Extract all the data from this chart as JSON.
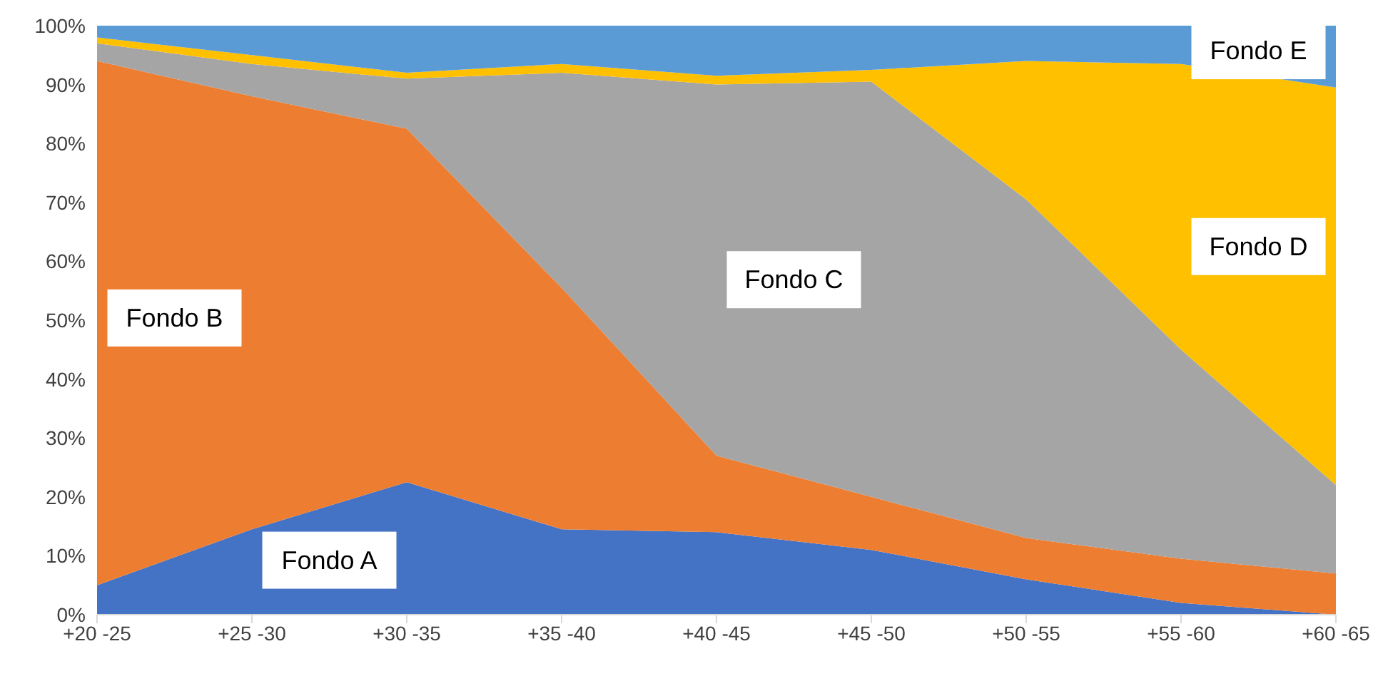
{
  "chart_data": {
    "type": "area",
    "stacked": true,
    "categories": [
      "+20 -25",
      "+25 -30",
      "+30 -35",
      "+35 -40",
      "+40 -45",
      "+45 -50",
      "+50 -55",
      "+55 -60",
      "+60 -65"
    ],
    "series": [
      {
        "name": "Fondo A",
        "color": "#4472c4",
        "values": [
          5,
          14.5,
          22.5,
          14.5,
          14,
          11,
          6,
          2,
          0
        ]
      },
      {
        "name": "Fondo B",
        "color": "#ed7d31",
        "values": [
          89,
          73.5,
          60,
          41,
          13,
          9,
          7,
          7.5,
          7
        ]
      },
      {
        "name": "Fondo C",
        "color": "#a5a5a5",
        "values": [
          3,
          5.5,
          8.5,
          36.5,
          63,
          70.5,
          57.5,
          35.5,
          15
        ]
      },
      {
        "name": "Fondo D",
        "color": "#ffc000",
        "values": [
          1,
          1.5,
          1,
          1.5,
          1.5,
          2,
          23.5,
          48.5,
          67.5
        ]
      },
      {
        "name": "Fondo E",
        "color": "#5b9bd5",
        "values": [
          2,
          5,
          8,
          6.5,
          8.5,
          7.5,
          6,
          6.5,
          10.5
        ]
      }
    ],
    "ylim": [
      0,
      100
    ],
    "yticks": [
      {
        "value": 0,
        "label": "0%"
      },
      {
        "value": 10,
        "label": "10%"
      },
      {
        "value": 20,
        "label": "20%"
      },
      {
        "value": 30,
        "label": "30%"
      },
      {
        "value": 40,
        "label": "40%"
      },
      {
        "value": 50,
        "label": "50%"
      },
      {
        "value": 60,
        "label": "60%"
      },
      {
        "value": 70,
        "label": "70%"
      },
      {
        "value": 80,
        "label": "80%"
      },
      {
        "value": 90,
        "label": "90%"
      },
      {
        "value": 100,
        "label": "100%"
      }
    ],
    "grid": false
  }
}
